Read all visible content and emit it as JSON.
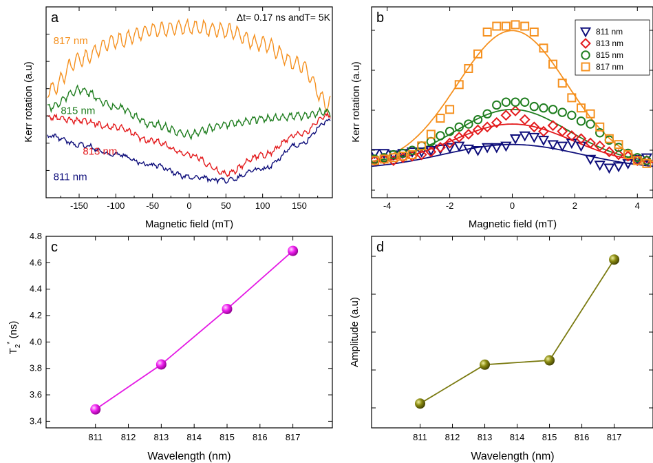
{
  "chart_data": [
    {
      "panel": "a",
      "type": "line",
      "xlabel": "Magnetic field (mT)",
      "ylabel": "Kerr rotation (a.u)",
      "annotation": "Δt= 0.17 ns andT= 5K",
      "xlim": [
        -195,
        195
      ],
      "xticks": [
        -150,
        -100,
        -50,
        0,
        50,
        100,
        150
      ],
      "grid": false,
      "series": [
        {
          "name": "817 nm",
          "color": "#f5901e",
          "x": [
            -190,
            -150,
            -100,
            -50,
            0,
            50,
            100,
            150,
            190
          ],
          "values": [
            0.6,
            0.78,
            0.89,
            0.95,
            0.97,
            0.95,
            0.87,
            0.75,
            0.52
          ]
        },
        {
          "name": "815 nm",
          "color": "#1e7d1e",
          "x": [
            -190,
            -150,
            -100,
            -50,
            0,
            50,
            100,
            150,
            190
          ],
          "values": [
            0.5,
            0.6,
            0.5,
            0.4,
            0.34,
            0.4,
            0.43,
            0.45,
            0.47
          ]
        },
        {
          "name": "813 nm",
          "color": "#e31a1c",
          "x": [
            -190,
            -150,
            -100,
            -50,
            0,
            50,
            100,
            150,
            190
          ],
          "values": [
            0.44,
            0.42,
            0.38,
            0.3,
            0.22,
            0.11,
            0.22,
            0.34,
            0.45
          ]
        },
        {
          "name": "811 nm",
          "color": "#0d0d7a",
          "x": [
            -190,
            -150,
            -100,
            -50,
            0,
            50,
            100,
            150,
            190
          ],
          "values": [
            0.33,
            0.28,
            0.22,
            0.16,
            0.09,
            0.07,
            0.14,
            0.28,
            0.42
          ]
        }
      ]
    },
    {
      "panel": "b",
      "type": "scatter",
      "xlabel": "Magnetic field (mT)",
      "ylabel": "Kerr rotation (a.u)",
      "xlim": [
        -4.5,
        4.5
      ],
      "xticks": [
        -4,
        -2,
        0,
        2,
        4
      ],
      "legend_position": "top-right",
      "series": [
        {
          "name": "811 nm",
          "color": "#0d0d7a",
          "marker": "triangle-down",
          "x": [
            -4.4,
            -4.1,
            -3.8,
            -3.5,
            -3.2,
            -2.9,
            -2.6,
            -2.3,
            -2.0,
            -1.7,
            -1.4,
            -1.1,
            -0.8,
            -0.5,
            -0.2,
            0.1,
            0.4,
            0.7,
            1.0,
            1.3,
            1.6,
            1.9,
            2.2,
            2.5,
            2.8,
            3.1,
            3.4,
            3.7,
            4.0,
            4.3
          ],
          "values": [
            0.13,
            0.13,
            0.12,
            0.13,
            0.14,
            0.14,
            0.15,
            0.16,
            0.17,
            0.18,
            0.16,
            0.15,
            0.17,
            0.17,
            0.18,
            0.23,
            0.25,
            0.24,
            0.22,
            0.19,
            0.18,
            0.2,
            0.18,
            0.09,
            0.05,
            0.03,
            0.04,
            0.06,
            0.09,
            0.1
          ],
          "fit_peak": 0.19,
          "fit_width": 2.2,
          "fit_base": 0.02
        },
        {
          "name": "813 nm",
          "color": "#e31a1c",
          "marker": "diamond",
          "x": [
            -4.4,
            -4.1,
            -3.8,
            -3.5,
            -3.2,
            -2.9,
            -2.6,
            -2.3,
            -2.0,
            -1.7,
            -1.4,
            -1.1,
            -0.8,
            -0.5,
            -0.2,
            0.1,
            0.4,
            0.7,
            1.0,
            1.3,
            1.6,
            1.9,
            2.2,
            2.5,
            2.8,
            3.1,
            3.4,
            3.7,
            4.0,
            4.3
          ],
          "values": [
            0.08,
            0.09,
            0.08,
            0.1,
            0.11,
            0.12,
            0.14,
            0.17,
            0.2,
            0.24,
            0.26,
            0.29,
            0.31,
            0.34,
            0.39,
            0.42,
            0.36,
            0.31,
            0.28,
            0.32,
            0.28,
            0.25,
            0.23,
            0.2,
            0.18,
            0.14,
            0.12,
            0.11,
            0.08,
            0.08
          ],
          "fit_peak": 0.33,
          "fit_width": 1.9,
          "fit_base": 0.05
        },
        {
          "name": "815 nm",
          "color": "#1e7d1e",
          "marker": "circle",
          "x": [
            -4.4,
            -4.1,
            -3.8,
            -3.5,
            -3.2,
            -2.9,
            -2.6,
            -2.3,
            -2.0,
            -1.7,
            -1.4,
            -1.1,
            -0.8,
            -0.5,
            -0.2,
            0.1,
            0.4,
            0.7,
            1.0,
            1.3,
            1.6,
            1.9,
            2.2,
            2.5,
            2.8,
            3.1,
            3.4,
            3.7,
            4.0,
            4.3
          ],
          "values": [
            0.09,
            0.1,
            0.12,
            0.13,
            0.15,
            0.18,
            0.21,
            0.25,
            0.28,
            0.31,
            0.33,
            0.36,
            0.4,
            0.46,
            0.48,
            0.48,
            0.48,
            0.45,
            0.44,
            0.43,
            0.41,
            0.39,
            0.35,
            0.33,
            0.27,
            0.22,
            0.17,
            0.13,
            0.1,
            0.08
          ],
          "fit_peak": 0.43,
          "fit_width": 1.8,
          "fit_base": 0.06
        },
        {
          "name": "817 nm",
          "color": "#f5901e",
          "marker": "square",
          "x": [
            -4.4,
            -4.1,
            -3.8,
            -3.5,
            -3.2,
            -2.9,
            -2.6,
            -2.3,
            -2.0,
            -1.7,
            -1.4,
            -1.1,
            -0.8,
            -0.5,
            -0.2,
            0.1,
            0.4,
            0.7,
            1.0,
            1.3,
            1.6,
            1.9,
            2.2,
            2.5,
            2.8,
            3.1,
            3.4,
            3.7,
            4.0,
            4.3
          ],
          "values": [
            0.08,
            0.09,
            0.1,
            0.11,
            0.12,
            0.18,
            0.26,
            0.37,
            0.43,
            0.6,
            0.71,
            0.81,
            0.96,
            1.0,
            1.0,
            1.01,
            1.0,
            0.96,
            0.85,
            0.74,
            0.61,
            0.51,
            0.44,
            0.4,
            0.31,
            0.23,
            0.19,
            0.12,
            0.08,
            0.06
          ],
          "fit_peak": 0.97,
          "fit_width": 1.75,
          "fit_base": 0.04
        }
      ]
    },
    {
      "panel": "c",
      "type": "line",
      "xlabel": "Wavelength (nm)",
      "ylabel": "T2* (ns)",
      "xlim": [
        809.5,
        818.2
      ],
      "ylim": [
        3.35,
        4.8
      ],
      "xticks": [
        811,
        812,
        813,
        814,
        815,
        816,
        817
      ],
      "yticks": [
        3.4,
        3.6,
        3.8,
        4.0,
        4.2,
        4.4,
        4.6,
        4.8
      ],
      "color": "#e418e4",
      "x": [
        811,
        813,
        815,
        817
      ],
      "values": [
        3.49,
        3.83,
        4.25,
        4.69
      ]
    },
    {
      "panel": "d",
      "type": "line",
      "xlabel": "Wavelength (nm)",
      "ylabel": "Amplitude (a.u)",
      "xlim": [
        809.5,
        818.2
      ],
      "xticks": [
        811,
        812,
        813,
        814,
        815,
        816,
        817
      ],
      "color": "#7a7a10",
      "x": [
        811,
        813,
        815,
        817
      ],
      "values": [
        0.03,
        0.3,
        0.33,
        1.03
      ]
    }
  ]
}
